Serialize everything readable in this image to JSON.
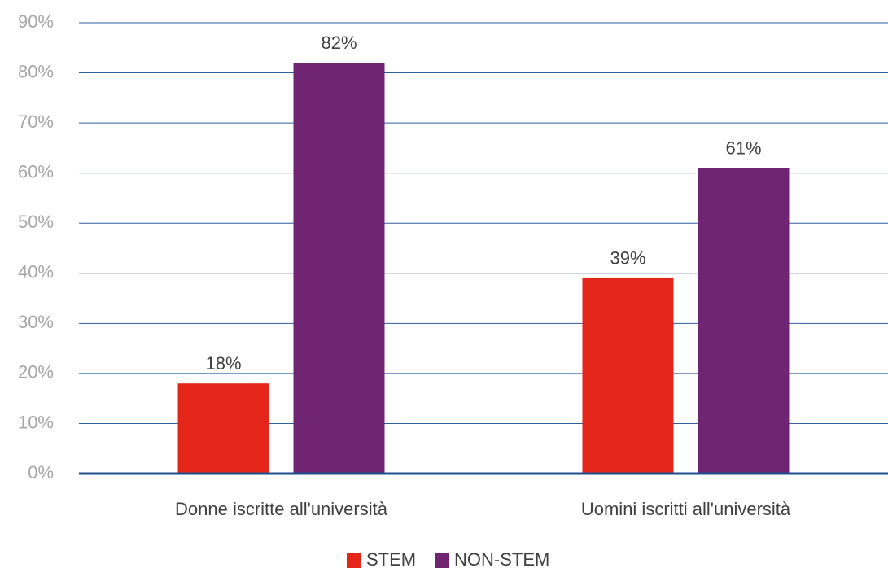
{
  "chart_data": {
    "type": "bar",
    "categories": [
      "Donne iscritte all'università",
      "Uomini iscritti all'università"
    ],
    "series": [
      {
        "name": "STEM",
        "color": "#e32619",
        "values": [
          18,
          39
        ],
        "value_labels": [
          "18%",
          "39%"
        ]
      },
      {
        "name": "NON-STEM",
        "color": "#702573",
        "values": [
          82,
          61
        ],
        "value_labels": [
          "82%",
          "61%"
        ]
      }
    ],
    "ylim": [
      0,
      90
    ],
    "yticks": [
      {
        "value": 0,
        "label": "0%"
      },
      {
        "value": 10,
        "label": "10%"
      },
      {
        "value": 20,
        "label": "20%"
      },
      {
        "value": 30,
        "label": "30%"
      },
      {
        "value": 40,
        "label": "40%"
      },
      {
        "value": 50,
        "label": "50%"
      },
      {
        "value": 60,
        "label": "60%"
      },
      {
        "value": 70,
        "label": "70%"
      },
      {
        "value": 80,
        "label": "80%"
      },
      {
        "value": 90,
        "label": "90%"
      }
    ],
    "grid": true,
    "legend": "bottom"
  }
}
